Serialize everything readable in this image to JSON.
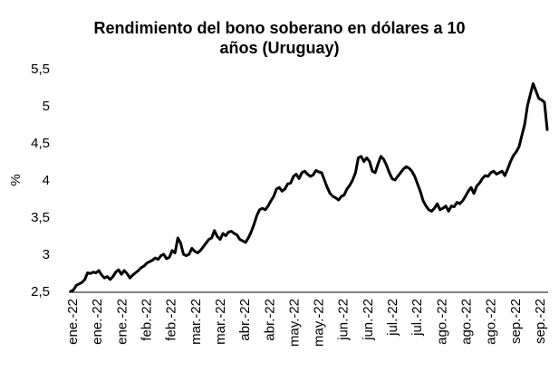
{
  "chart_data": {
    "type": "line",
    "title_lines": [
      "Rendimiento del bono soberano en dólares a 10",
      "años (Uruguay)"
    ],
    "xlabel": "",
    "ylabel": "%",
    "ylim": [
      2.5,
      5.5
    ],
    "yticks": [
      "2,5",
      "3",
      "3,5",
      "4",
      "4,5",
      "5",
      "5,5"
    ],
    "x_tick_labels": [
      "ene.-22",
      "ene.-22",
      "ene.-22",
      "feb.-22",
      "feb.-22",
      "mar.-22",
      "mar.-22",
      "abr.-22",
      "abr.-22",
      "may.-22",
      "may.-22",
      "jun.-22",
      "jun.-22",
      "jul.-22",
      "jul.-22",
      "ago.-22",
      "ago.-22",
      "ago.-22",
      "sep.-22",
      "sep.-22"
    ],
    "grid": false,
    "legend": "none",
    "line_color": "#000000",
    "series": [
      {
        "values": [
          2.5,
          2.52,
          2.58,
          2.6,
          2.62,
          2.66,
          2.75,
          2.74,
          2.76,
          2.75,
          2.78,
          2.72,
          2.68,
          2.7,
          2.66,
          2.7,
          2.76,
          2.79,
          2.73,
          2.78,
          2.74,
          2.68,
          2.72,
          2.75,
          2.78,
          2.82,
          2.84,
          2.88,
          2.9,
          2.92,
          2.95,
          2.93,
          2.98,
          3.0,
          2.94,
          2.96,
          3.05,
          3.02,
          3.22,
          3.15,
          3.0,
          2.98,
          3.0,
          3.08,
          3.04,
          3.02,
          3.05,
          3.1,
          3.15,
          3.2,
          3.22,
          3.32,
          3.24,
          3.2,
          3.28,
          3.25,
          3.3,
          3.31,
          3.28,
          3.26,
          3.2,
          3.18,
          3.16,
          3.22,
          3.3,
          3.4,
          3.52,
          3.6,
          3.62,
          3.6,
          3.65,
          3.72,
          3.78,
          3.88,
          3.9,
          3.85,
          3.88,
          3.95,
          3.96,
          4.05,
          4.08,
          4.02,
          4.1,
          4.12,
          4.08,
          4.05,
          4.07,
          4.13,
          4.11,
          4.1,
          4.0,
          3.9,
          3.82,
          3.78,
          3.76,
          3.73,
          3.78,
          3.8,
          3.88,
          3.93,
          4.0,
          4.1,
          4.3,
          4.32,
          4.25,
          4.3,
          4.25,
          4.12,
          4.1,
          4.22,
          4.32,
          4.28,
          4.2,
          4.1,
          4.02,
          4.0,
          4.05,
          4.1,
          4.15,
          4.18,
          4.16,
          4.12,
          4.05,
          3.95,
          3.85,
          3.72,
          3.65,
          3.6,
          3.58,
          3.62,
          3.68,
          3.6,
          3.62,
          3.65,
          3.58,
          3.65,
          3.64,
          3.7,
          3.68,
          3.72,
          3.78,
          3.85,
          3.9,
          3.82,
          3.92,
          3.96,
          4.02,
          4.06,
          4.05,
          4.1,
          4.12,
          4.08,
          4.1,
          4.12,
          4.06,
          4.15,
          4.25,
          4.33,
          4.38,
          4.45,
          4.6,
          4.75,
          5.0,
          5.15,
          5.3,
          5.2,
          5.1,
          5.08,
          5.05,
          4.68
        ]
      }
    ]
  }
}
